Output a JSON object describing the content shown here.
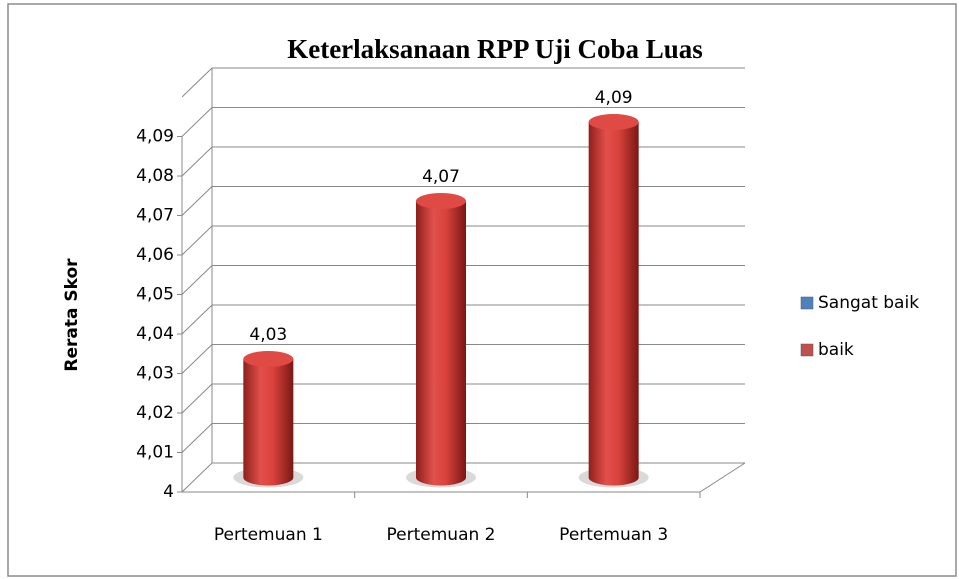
{
  "chart_data": {
    "type": "bar3d",
    "title": "Keterlaksanaan RPP Uji Coba Luas",
    "ylabel": "Rerata Skor",
    "categories": [
      "Pertemuan 1",
      "Pertemuan 2",
      "Pertemuan 3"
    ],
    "series": [
      {
        "name": "Sangat baik",
        "color": "#4f81bd",
        "values": [
          null,
          null,
          null
        ]
      },
      {
        "name": "baik",
        "color": "#c0504d",
        "values": [
          4.03,
          4.07,
          4.09
        ],
        "value_labels": [
          "4,03",
          "4,07",
          "4,09"
        ]
      }
    ],
    "ylim": [
      4,
      4.1
    ],
    "yticks": [
      4,
      {
        "value": 4.01,
        "label": "4,01"
      },
      {
        "value": 4.02,
        "label": "4,02"
      },
      {
        "value": 4.03,
        "label": "4,03"
      },
      {
        "value": 4.04,
        "label": "4,04"
      },
      {
        "value": 4.05,
        "label": "4,05"
      },
      {
        "value": 4.06,
        "label": "4,06"
      },
      {
        "value": 4.07,
        "label": "4,07"
      },
      {
        "value": 4.08,
        "label": "4,08"
      },
      {
        "value": 4.09,
        "label": "4,09"
      }
    ],
    "grid": true,
    "legend": "right"
  }
}
